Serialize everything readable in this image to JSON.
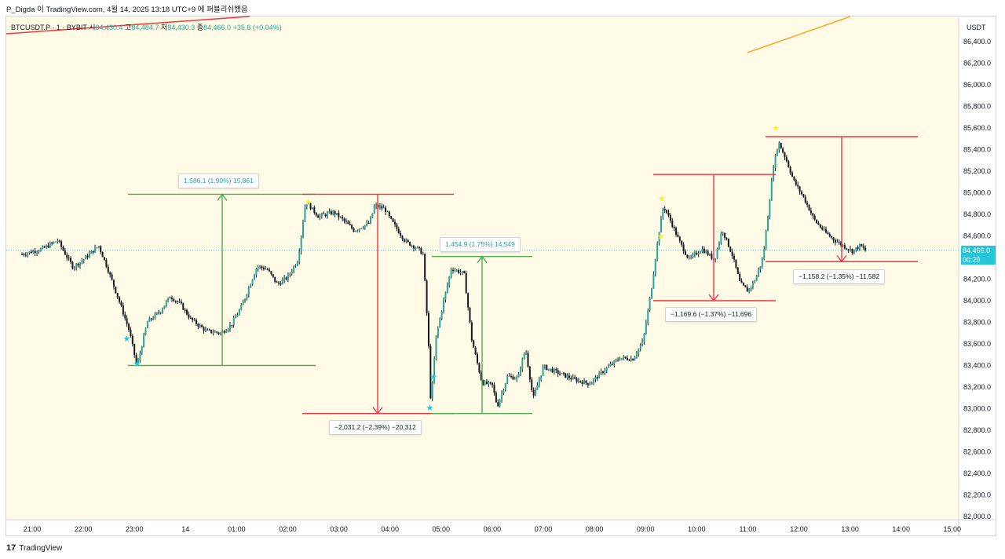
{
  "header": {
    "publish_line": "P_Digda 이 TradingView.com, 4월 14, 2025 13:18 UTC+9 에 퍼블리쉬했음"
  },
  "symbol": {
    "name": "BTCUSDT.P · 1 · BYBIT",
    "open_label": "시",
    "open": "84,430.4",
    "high_label": "고",
    "high": "84,484.7",
    "low_label": "저",
    "low": "84,430.3",
    "close_label": "종",
    "close": "84,466.0",
    "change": "+35.6 (+0.04%)"
  },
  "price_axis": {
    "unit": "USDT",
    "current_price": "84,466.0",
    "countdown": "00:29"
  },
  "footer": {
    "logo": "17",
    "brand": "TradingView"
  },
  "annotations": [
    {
      "id": "m1",
      "text": "1,586.1 (1.90%) 15,861",
      "kind": "pos"
    },
    {
      "id": "m2",
      "text": "−2,031.2 (−2.39%) −20,312",
      "kind": "neg"
    },
    {
      "id": "m3",
      "text": "1,454.9 (1.75%) 14,549",
      "kind": "pos"
    },
    {
      "id": "m4",
      "text": "−1,169.6 (−1.37%) −11,696",
      "kind": "neg"
    },
    {
      "id": "m5",
      "text": "−1,158.2 (−1.35%) −11,582",
      "kind": "neg"
    }
  ],
  "colors": {
    "background": "#fffbe6",
    "up": "#26a69a",
    "down": "#ef5350",
    "candle": "#131722",
    "measure_up": "#4caf50",
    "measure_down": "#f23645",
    "trend_orange": "#ffa726",
    "star_cyan": "#26c6da",
    "star_yellow": "#ffeb3b",
    "price_line": "#26c6da"
  },
  "chart_data": {
    "type": "candlestick",
    "symbol": "BTCUSDT.P",
    "interval": "1",
    "exchange": "BYBIT",
    "ylim": [
      82000,
      86500
    ],
    "y_ticks": [
      {
        "v": 82000,
        "label": "82,000.0"
      },
      {
        "v": 82200,
        "label": "82,200.0"
      },
      {
        "v": 82400,
        "label": "82,400.0"
      },
      {
        "v": 82600,
        "label": "82,600.0"
      },
      {
        "v": 82800,
        "label": "82,800.0"
      },
      {
        "v": 83000,
        "label": "83,000.0"
      },
      {
        "v": 83200,
        "label": "83,200.0"
      },
      {
        "v": 83400,
        "label": "83,400.0"
      },
      {
        "v": 83600,
        "label": "83,600.0"
      },
      {
        "v": 83800,
        "label": "83,800.0"
      },
      {
        "v": 84000,
        "label": "84,000.0"
      },
      {
        "v": 84200,
        "label": "84,200.0"
      },
      {
        "v": 84400,
        "label": "84,400.0"
      },
      {
        "v": 84600,
        "label": "84,600.0"
      },
      {
        "v": 84800,
        "label": "84,800.0"
      },
      {
        "v": 85000,
        "label": "85,000.0"
      },
      {
        "v": 85200,
        "label": "85,200.0"
      },
      {
        "v": 85400,
        "label": "85,400.0"
      },
      {
        "v": 85600,
        "label": "85,600.0"
      },
      {
        "v": 85800,
        "label": "85,800.0"
      },
      {
        "v": 86000,
        "label": "86,000.0"
      },
      {
        "v": 86200,
        "label": "86,200.0"
      },
      {
        "v": 86400,
        "label": "86,400.0"
      }
    ],
    "x_ticks": [
      {
        "t": 21,
        "label": "21:00"
      },
      {
        "t": 22,
        "label": "22:00"
      },
      {
        "t": 23,
        "label": "23:00"
      },
      {
        "t": 24,
        "label": "14"
      },
      {
        "t": 25,
        "label": "01:00"
      },
      {
        "t": 26,
        "label": "02:00"
      },
      {
        "t": 27,
        "label": "03:00"
      },
      {
        "t": 28,
        "label": "04:00"
      },
      {
        "t": 29,
        "label": "05:00"
      },
      {
        "t": 30,
        "label": "06:00"
      },
      {
        "t": 31,
        "label": "07:00"
      },
      {
        "t": 32,
        "label": "08:00"
      },
      {
        "t": 33,
        "label": "09:00"
      },
      {
        "t": 34,
        "label": "10:00"
      },
      {
        "t": 35,
        "label": "11:00"
      },
      {
        "t": 36,
        "label": "12:00"
      },
      {
        "t": 37,
        "label": "13:00"
      },
      {
        "t": 38,
        "label": "14:00"
      },
      {
        "t": 39,
        "label": "15:00"
      }
    ],
    "xlim": [
      20.8,
      39.2
    ],
    "price_path": [
      [
        20.8,
        84430
      ],
      [
        21.2,
        84480
      ],
      [
        21.5,
        84560
      ],
      [
        21.65,
        84430
      ],
      [
        21.8,
        84310
      ],
      [
        22.0,
        84380
      ],
      [
        22.3,
        84510
      ],
      [
        22.45,
        84330
      ],
      [
        22.7,
        84000
      ],
      [
        22.9,
        83720
      ],
      [
        23.05,
        83390
      ],
      [
        23.25,
        83800
      ],
      [
        23.5,
        83900
      ],
      [
        23.7,
        84040
      ],
      [
        23.9,
        83970
      ],
      [
        24.1,
        83830
      ],
      [
        24.4,
        83720
      ],
      [
        24.7,
        83700
      ],
      [
        24.9,
        83780
      ],
      [
        25.1,
        83950
      ],
      [
        25.4,
        84320
      ],
      [
        25.6,
        84290
      ],
      [
        25.8,
        84150
      ],
      [
        26.0,
        84220
      ],
      [
        26.2,
        84380
      ],
      [
        26.35,
        84920
      ],
      [
        26.6,
        84780
      ],
      [
        26.9,
        84820
      ],
      [
        27.1,
        84740
      ],
      [
        27.3,
        84650
      ],
      [
        27.6,
        84720
      ],
      [
        27.7,
        84880
      ],
      [
        27.9,
        84850
      ],
      [
        28.0,
        84760
      ],
      [
        28.3,
        84550
      ],
      [
        28.55,
        84480
      ],
      [
        28.65,
        84430
      ],
      [
        28.75,
        83650
      ],
      [
        28.8,
        83030
      ],
      [
        28.9,
        83660
      ],
      [
        29.05,
        84000
      ],
      [
        29.2,
        84300
      ],
      [
        29.45,
        84250
      ],
      [
        29.6,
        83640
      ],
      [
        29.8,
        83240
      ],
      [
        30.0,
        83220
      ],
      [
        30.1,
        83020
      ],
      [
        30.3,
        83300
      ],
      [
        30.5,
        83280
      ],
      [
        30.65,
        83560
      ],
      [
        30.8,
        83090
      ],
      [
        31.0,
        83390
      ],
      [
        31.3,
        83330
      ],
      [
        31.6,
        83270
      ],
      [
        31.9,
        83230
      ],
      [
        32.2,
        83360
      ],
      [
        32.5,
        83470
      ],
      [
        32.75,
        83460
      ],
      [
        32.95,
        83620
      ],
      [
        33.1,
        84060
      ],
      [
        33.25,
        84600
      ],
      [
        33.35,
        84880
      ],
      [
        33.5,
        84730
      ],
      [
        33.65,
        84560
      ],
      [
        33.85,
        84380
      ],
      [
        34.1,
        84480
      ],
      [
        34.35,
        84380
      ],
      [
        34.5,
        84660
      ],
      [
        34.7,
        84420
      ],
      [
        34.85,
        84160
      ],
      [
        35.0,
        84090
      ],
      [
        35.15,
        84200
      ],
      [
        35.3,
        84400
      ],
      [
        35.5,
        85240
      ],
      [
        35.6,
        85470
      ],
      [
        35.75,
        85310
      ],
      [
        35.9,
        85110
      ],
      [
        36.1,
        84950
      ],
      [
        36.3,
        84750
      ],
      [
        36.5,
        84640
      ],
      [
        36.7,
        84560
      ],
      [
        36.9,
        84500
      ],
      [
        37.05,
        84460
      ],
      [
        37.2,
        84510
      ],
      [
        37.3,
        84466
      ]
    ],
    "measure_ranges": [
      {
        "id": "m1",
        "from_price": 83400,
        "to_price": 84986.1,
        "change": "1,586.1 (1.90%) 15,861"
      },
      {
        "id": "m2",
        "from_price": 84986.1,
        "to_price": 82954.9,
        "change": "−2,031.2 (−2.39%) −20,312"
      },
      {
        "id": "m3",
        "from_price": 82954.9,
        "to_price": 84409.8,
        "change": "1,454.9 (1.75%) 14,549"
      },
      {
        "id": "m4",
        "from_price": 85169.6,
        "to_price": 84000,
        "change": "−1,169.6 (−1.37%) −11,696"
      },
      {
        "id": "m5",
        "from_price": 85520,
        "to_price": 84361.8,
        "change": "−1,158.2 (−1.35%) −11,582"
      }
    ],
    "signals": [
      {
        "type": "buy",
        "color": "cyan",
        "t": 22.85,
        "price": 83650
      },
      {
        "type": "buy",
        "color": "cyan",
        "t": 23.05,
        "price": 83420
      },
      {
        "type": "buy",
        "color": "cyan",
        "t": 28.78,
        "price": 83010
      },
      {
        "type": "buy",
        "color": "cyan",
        "t": 28.85,
        "price": 83300
      },
      {
        "type": "sell",
        "color": "yellow",
        "t": 26.4,
        "price": 84920
      },
      {
        "type": "sell",
        "color": "yellow",
        "t": 33.32,
        "price": 84950
      },
      {
        "type": "sell",
        "color": "yellow",
        "t": 33.3,
        "price": 84600
      },
      {
        "type": "sell",
        "color": "yellow",
        "t": 35.55,
        "price": 85600
      }
    ],
    "last_price": 84466.0,
    "legend": "none",
    "grid": false
  }
}
